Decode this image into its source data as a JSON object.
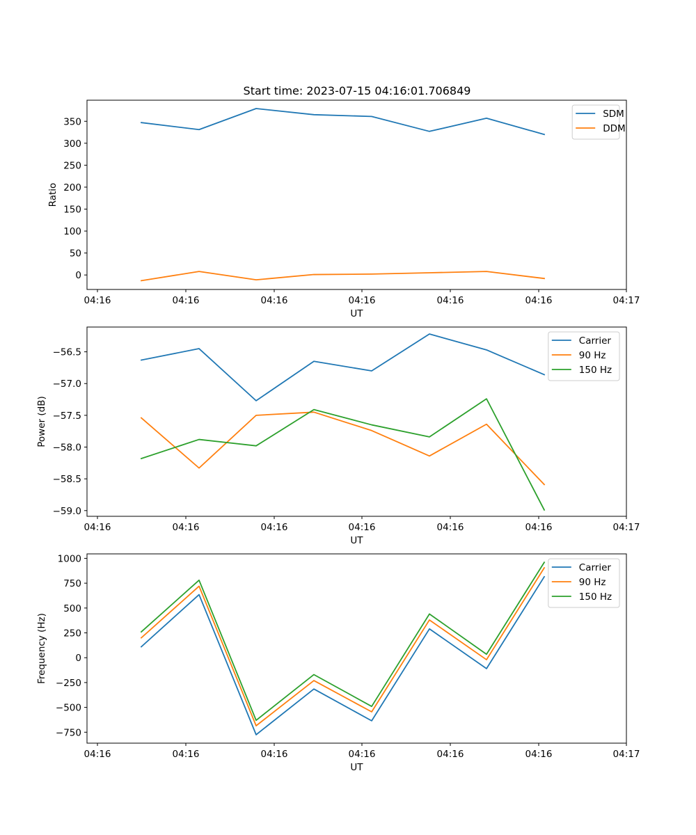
{
  "title": "Start time: 2023-07-15 04:16:01.706849",
  "colors": {
    "blue": "#1f77b4",
    "orange": "#ff7f0e",
    "green": "#2ca02c"
  },
  "chart_data": [
    {
      "type": "line",
      "title": "Start time: 2023-07-15 04:16:01.706849",
      "xlabel": "UT",
      "ylabel": "Ratio",
      "x_tick_labels": [
        "04:16",
        "04:16",
        "04:16",
        "04:16",
        "04:16",
        "04:16",
        "04:17"
      ],
      "y_ticks": [
        0,
        50,
        100,
        150,
        200,
        250,
        300,
        350
      ],
      "y_tick_labels": [
        "0",
        "50",
        "100",
        "150",
        "200",
        "250",
        "300",
        "350"
      ],
      "ylim": [
        -33,
        398
      ],
      "legend_position": "top-right",
      "series": [
        {
          "name": "SDM",
          "color": "#1f77b4",
          "values": [
            347,
            331,
            379,
            365,
            361,
            327,
            357,
            320
          ]
        },
        {
          "name": "DDM",
          "color": "#ff7f0e",
          "values": [
            -13,
            8,
            -11,
            1,
            2,
            5,
            8,
            -8
          ]
        }
      ]
    },
    {
      "type": "line",
      "title": "",
      "xlabel": "UT",
      "ylabel": "Power (dB)",
      "x_tick_labels": [
        "04:16",
        "04:16",
        "04:16",
        "04:16",
        "04:16",
        "04:16",
        "04:17"
      ],
      "y_ticks": [
        -59.0,
        -58.5,
        -58.0,
        -57.5,
        -57.0,
        -56.5
      ],
      "y_tick_labels": [
        "−59.0",
        "−58.5",
        "−58.0",
        "−57.5",
        "−57.0",
        "−56.5"
      ],
      "ylim": [
        -59.09,
        -56.11
      ],
      "legend_position": "top-right",
      "series": [
        {
          "name": "Carrier",
          "color": "#1f77b4",
          "values": [
            -56.63,
            -56.45,
            -57.27,
            -56.65,
            -56.8,
            -56.22,
            -56.47,
            -56.86
          ]
        },
        {
          "name": "90 Hz",
          "color": "#ff7f0e",
          "values": [
            -57.54,
            -58.33,
            -57.5,
            -57.45,
            -57.74,
            -58.14,
            -57.64,
            -58.59
          ]
        },
        {
          "name": "150 Hz",
          "color": "#2ca02c",
          "values": [
            -58.18,
            -57.88,
            -57.98,
            -57.41,
            -57.65,
            -57.84,
            -57.24,
            -58.99
          ]
        }
      ]
    },
    {
      "type": "line",
      "title": "",
      "xlabel": "UT",
      "ylabel": "Frequency (Hz)",
      "x_tick_labels": [
        "04:16",
        "04:16",
        "04:16",
        "04:16",
        "04:16",
        "04:16",
        "04:17"
      ],
      "y_ticks": [
        -750,
        -500,
        -250,
        0,
        250,
        500,
        750,
        1000
      ],
      "y_tick_labels": [
        "−750",
        "−500",
        "−250",
        "0",
        "250",
        "500",
        "750",
        "1000"
      ],
      "ylim": [
        -860,
        1045
      ],
      "legend_position": "top-right",
      "series": [
        {
          "name": "Carrier",
          "color": "#1f77b4",
          "values": [
            110,
            635,
            -775,
            -315,
            -635,
            290,
            -110,
            815
          ]
        },
        {
          "name": "90 Hz",
          "color": "#ff7f0e",
          "values": [
            200,
            720,
            -685,
            -230,
            -545,
            380,
            -20,
            905
          ]
        },
        {
          "name": "150 Hz",
          "color": "#2ca02c",
          "values": [
            260,
            780,
            -630,
            -170,
            -490,
            440,
            35,
            960
          ]
        }
      ]
    }
  ]
}
